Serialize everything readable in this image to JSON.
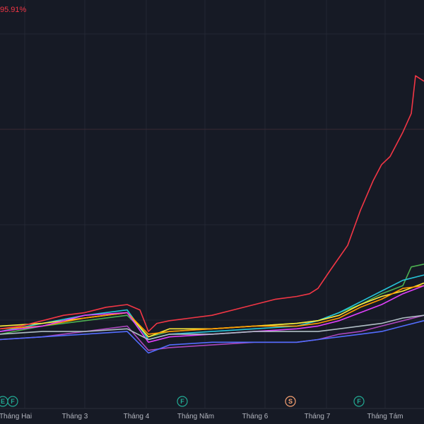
{
  "chart_data": {
    "type": "line",
    "top_label": "95.91%",
    "months": [
      "Tháng Hai",
      "Tháng 3",
      "Tháng 4",
      "Tháng Năm",
      "Tháng 6",
      "Tháng 7",
      "Tháng Tám"
    ],
    "event_markers": [
      {
        "letter": "E",
        "month": "Tháng Hai",
        "color": "#22ab94"
      },
      {
        "letter": "F",
        "month": "Tháng Hai",
        "color": "#22ab94"
      },
      {
        "letter": "F",
        "month": "Tháng Năm",
        "color": "#22ab94"
      },
      {
        "letter": "S",
        "month": "Tháng 7",
        "color": "#f7a172"
      },
      {
        "letter": "F",
        "month": "Tháng Tám",
        "color": "#22ab94"
      }
    ],
    "x_range": [
      0,
      100
    ],
    "y_range": [
      -15,
      100
    ],
    "grid": true,
    "series": [
      {
        "color": "#f23645",
        "points": [
          [
            0,
            2
          ],
          [
            5,
            3
          ],
          [
            10,
            5
          ],
          [
            15,
            7
          ],
          [
            20,
            8
          ],
          [
            25,
            10
          ],
          [
            30,
            11
          ],
          [
            33,
            9
          ],
          [
            35,
            1
          ],
          [
            37,
            4
          ],
          [
            40,
            5
          ],
          [
            45,
            6
          ],
          [
            50,
            7
          ],
          [
            55,
            9
          ],
          [
            60,
            11
          ],
          [
            65,
            13
          ],
          [
            70,
            14
          ],
          [
            73,
            15
          ],
          [
            75,
            17
          ],
          [
            78,
            24
          ],
          [
            82,
            33
          ],
          [
            85,
            46
          ],
          [
            88,
            57
          ],
          [
            90,
            63
          ],
          [
            92,
            66
          ],
          [
            95,
            75
          ],
          [
            97,
            82
          ],
          [
            98,
            96
          ],
          [
            100,
            94
          ]
        ]
      },
      {
        "color": "#4caf50",
        "points": [
          [
            0,
            0
          ],
          [
            10,
            3
          ],
          [
            20,
            5
          ],
          [
            30,
            7
          ],
          [
            35,
            -1
          ],
          [
            40,
            1
          ],
          [
            50,
            2
          ],
          [
            60,
            3
          ],
          [
            70,
            4
          ],
          [
            75,
            5
          ],
          [
            80,
            8
          ],
          [
            85,
            11
          ],
          [
            90,
            15
          ],
          [
            95,
            18
          ],
          [
            97,
            25
          ],
          [
            100,
            26
          ]
        ]
      },
      {
        "color": "#26c6da",
        "points": [
          [
            0,
            1
          ],
          [
            10,
            4
          ],
          [
            20,
            7
          ],
          [
            30,
            9
          ],
          [
            35,
            -2
          ],
          [
            40,
            0
          ],
          [
            50,
            1
          ],
          [
            60,
            2
          ],
          [
            70,
            3
          ],
          [
            75,
            5
          ],
          [
            80,
            8
          ],
          [
            85,
            12
          ],
          [
            90,
            16
          ],
          [
            95,
            20
          ],
          [
            100,
            22
          ]
        ]
      },
      {
        "color": "#ffeb3b",
        "points": [
          [
            0,
            3
          ],
          [
            10,
            4
          ],
          [
            20,
            6
          ],
          [
            30,
            8
          ],
          [
            35,
            -1
          ],
          [
            40,
            2
          ],
          [
            50,
            2
          ],
          [
            60,
            3
          ],
          [
            70,
            4
          ],
          [
            75,
            5
          ],
          [
            80,
            7
          ],
          [
            85,
            11
          ],
          [
            90,
            14
          ],
          [
            95,
            16
          ],
          [
            100,
            19
          ]
        ]
      },
      {
        "color": "#ff9800",
        "points": [
          [
            0,
            2
          ],
          [
            10,
            3
          ],
          [
            20,
            6
          ],
          [
            30,
            8
          ],
          [
            35,
            0
          ],
          [
            40,
            1
          ],
          [
            50,
            2
          ],
          [
            60,
            3
          ],
          [
            70,
            3
          ],
          [
            75,
            4
          ],
          [
            80,
            6
          ],
          [
            85,
            10
          ],
          [
            90,
            13
          ],
          [
            95,
            17
          ],
          [
            100,
            18
          ]
        ]
      },
      {
        "color": "#e040fb",
        "points": [
          [
            0,
            1
          ],
          [
            10,
            3
          ],
          [
            20,
            7
          ],
          [
            30,
            8
          ],
          [
            35,
            -3
          ],
          [
            40,
            -1
          ],
          [
            50,
            0
          ],
          [
            60,
            1
          ],
          [
            70,
            2
          ],
          [
            75,
            3
          ],
          [
            80,
            5
          ],
          [
            85,
            8
          ],
          [
            90,
            11
          ],
          [
            95,
            15
          ],
          [
            100,
            18
          ]
        ]
      },
      {
        "color": "#ab47bc",
        "points": [
          [
            0,
            -2
          ],
          [
            10,
            -1
          ],
          [
            20,
            1
          ],
          [
            30,
            3
          ],
          [
            35,
            -6
          ],
          [
            40,
            -5
          ],
          [
            50,
            -4
          ],
          [
            60,
            -3
          ],
          [
            70,
            -3
          ],
          [
            75,
            -2
          ],
          [
            80,
            0
          ],
          [
            85,
            1
          ],
          [
            90,
            3
          ],
          [
            95,
            5
          ],
          [
            100,
            7
          ]
        ]
      },
      {
        "color": "#536dfe",
        "points": [
          [
            0,
            -2
          ],
          [
            10,
            -1
          ],
          [
            20,
            0
          ],
          [
            30,
            1
          ],
          [
            35,
            -7
          ],
          [
            40,
            -4
          ],
          [
            50,
            -3
          ],
          [
            60,
            -3
          ],
          [
            70,
            -3
          ],
          [
            75,
            -2
          ],
          [
            80,
            -1
          ],
          [
            85,
            0
          ],
          [
            90,
            1
          ],
          [
            95,
            3
          ],
          [
            100,
            5
          ]
        ]
      },
      {
        "color": "#b0bec5",
        "points": [
          [
            0,
            0
          ],
          [
            10,
            1
          ],
          [
            20,
            1
          ],
          [
            30,
            2
          ],
          [
            35,
            -2
          ],
          [
            40,
            0
          ],
          [
            50,
            0
          ],
          [
            60,
            1
          ],
          [
            70,
            1
          ],
          [
            75,
            1
          ],
          [
            80,
            2
          ],
          [
            85,
            3
          ],
          [
            90,
            4
          ],
          [
            95,
            6
          ],
          [
            100,
            7
          ]
        ]
      }
    ]
  }
}
